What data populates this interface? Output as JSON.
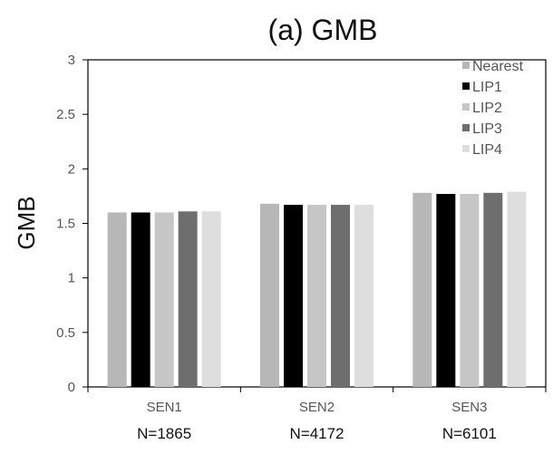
{
  "chart_data": {
    "type": "bar",
    "title": "(a) GMB",
    "ylabel": "GMB",
    "xlabel": "",
    "ylim": [
      0,
      3
    ],
    "yticks": [
      "0",
      "0.5",
      "1",
      "1.5",
      "2",
      "2.5",
      "3"
    ],
    "yticks_values": [
      0,
      0.5,
      1,
      1.5,
      2,
      2.5,
      3
    ],
    "categories": [
      "SEN1",
      "SEN2",
      "SEN3"
    ],
    "category_sublabels": [
      "N=1865",
      "N=4172",
      "N=6101"
    ],
    "series": [
      {
        "name": "Nearest",
        "color": "#b7b7b7",
        "values": [
          1.6,
          1.68,
          1.78
        ]
      },
      {
        "name": "LIP1",
        "color": "#000000",
        "values": [
          1.6,
          1.67,
          1.77
        ]
      },
      {
        "name": "LIP2",
        "color": "#c6c6c6",
        "values": [
          1.6,
          1.67,
          1.77
        ]
      },
      {
        "name": "LIP3",
        "color": "#6e6e6e",
        "values": [
          1.61,
          1.67,
          1.78
        ]
      },
      {
        "name": "LIP4",
        "color": "#dedede",
        "values": [
          1.61,
          1.67,
          1.79
        ]
      }
    ],
    "grid": false,
    "legend_position": "top-right"
  }
}
